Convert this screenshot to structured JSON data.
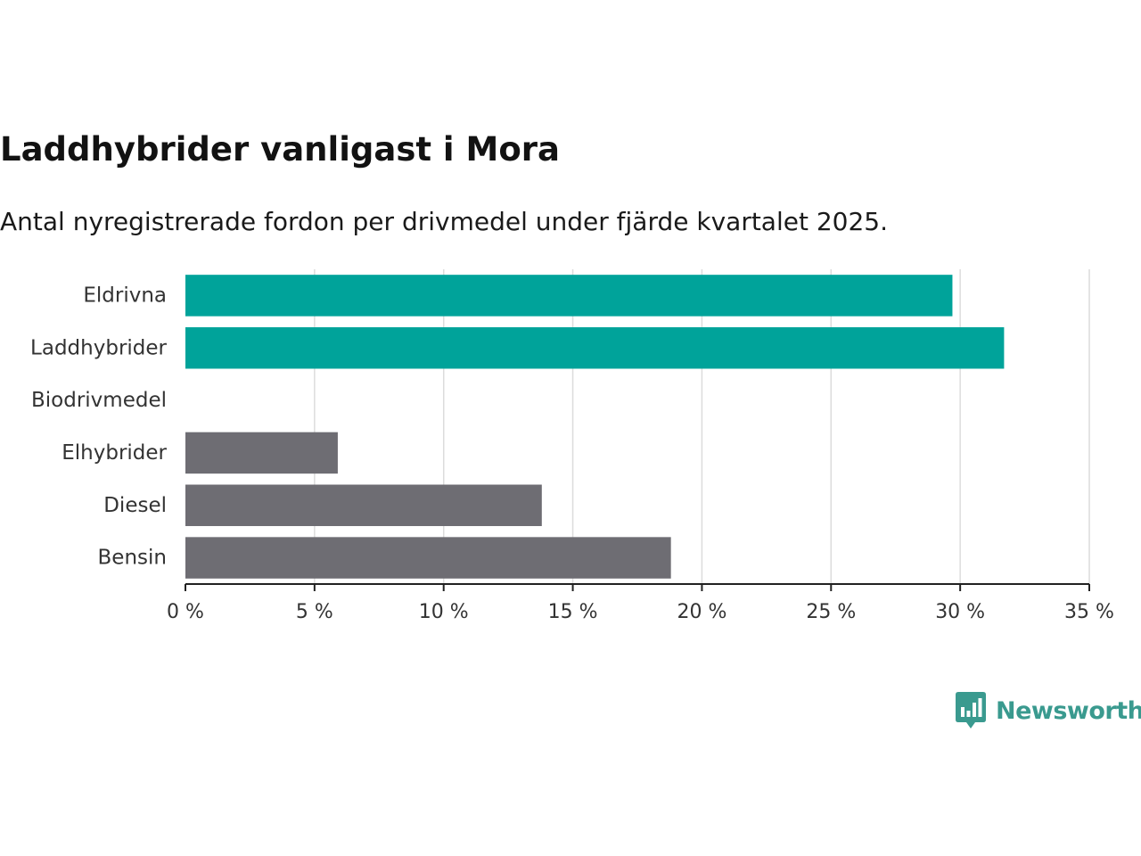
{
  "chart_data": {
    "type": "bar",
    "orientation": "horizontal",
    "title": "Laddhybrider vanligast i Mora",
    "subtitle": "Antal nyregistrerade fordon per drivmedel under fjärde kvartalet 2025.",
    "categories": [
      "Eldrivna",
      "Laddhybrider",
      "Biodrivmedel",
      "Elhybrider",
      "Diesel",
      "Bensin"
    ],
    "values": [
      29.7,
      31.7,
      0,
      5.9,
      13.8,
      18.8
    ],
    "colors": [
      "#00a39a",
      "#00a39a",
      "#00a39a",
      "#6e6d73",
      "#6e6d73",
      "#6e6d73"
    ],
    "unit": "%",
    "xlim": [
      0,
      35
    ],
    "xticks": [
      0,
      5,
      10,
      15,
      20,
      25,
      30,
      35
    ],
    "xtick_labels": [
      "0 %",
      "5 %",
      "10 %",
      "15 %",
      "20 %",
      "25 %",
      "30 %",
      "35 %"
    ],
    "grid": true,
    "xlabel": "",
    "ylabel": ""
  },
  "brand": {
    "name": "Newsworthy",
    "logo_icon": "newsworthy-logo-icon",
    "color": "#3a9a8f"
  }
}
